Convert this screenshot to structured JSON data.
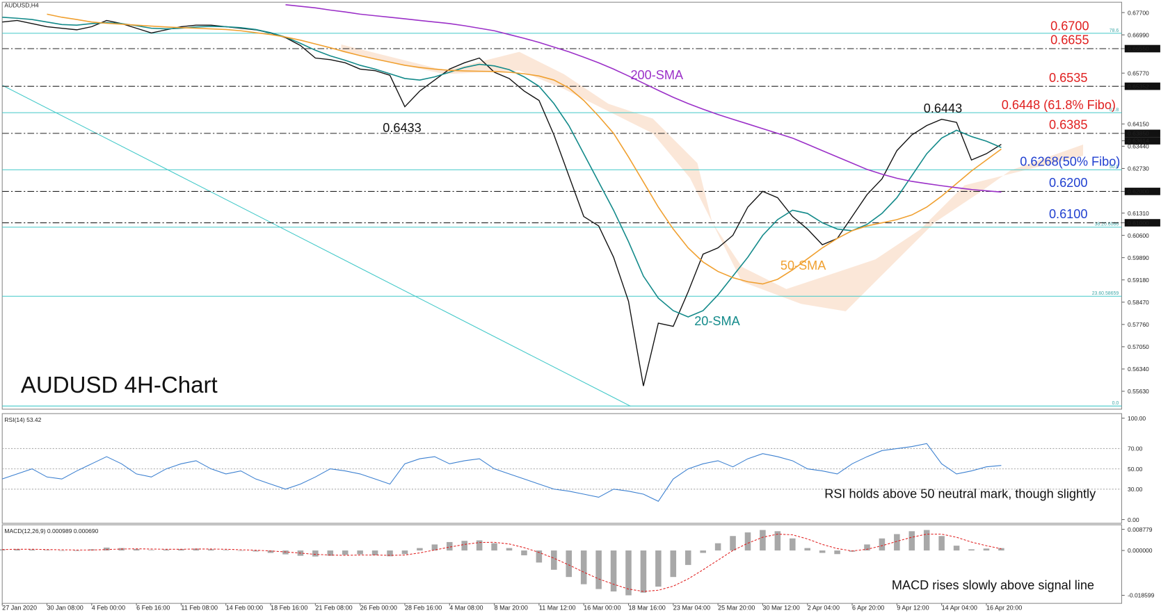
{
  "chart_data": {
    "type": "line",
    "title": "AUDUSD 4H-Chart",
    "symbol_label": "AUDUSD,H4",
    "categories": [
      "27 Jan 2020",
      null,
      null,
      "30 Jan 08:00",
      null,
      null,
      "4 Feb 00:00",
      null,
      null,
      "6 Feb 16:00",
      null,
      null,
      "11 Feb 08:00",
      null,
      null,
      "14 Feb 00:00",
      null,
      null,
      "18 Feb 16:00",
      null,
      null,
      "21 Feb 08:00",
      null,
      null,
      "26 Feb 00:00",
      null,
      null,
      "28 Feb 16:00",
      null,
      null,
      "4 Mar 08:00",
      null,
      null,
      "8 Mar 20:00",
      null,
      null,
      "11 Mar 12:00",
      null,
      null,
      "16 Mar 00:00",
      null,
      null,
      "18 Mar 16:00",
      null,
      null,
      "23 Mar 04:00",
      null,
      null,
      "25 Mar 20:00",
      null,
      null,
      "30 Mar 12:00",
      null,
      null,
      "2 Apr 04:00",
      null,
      null,
      "6 Apr 20:00",
      null,
      null,
      "9 Apr 12:00",
      null,
      null,
      "14 Apr 04:00",
      null,
      null,
      "16 Apr 20:00",
      null
    ],
    "ylim": [
      0.5506,
      0.6803
    ],
    "yticks": [
      {
        "value": 0.677,
        "label": "0.67700"
      },
      {
        "value": 0.6699,
        "label": "0.66990"
      },
      {
        "value": 0.6655,
        "label": "0.66550",
        "boxed": true
      },
      {
        "value": 0.6577,
        "label": "0.65770"
      },
      {
        "value": 0.65352,
        "label": "0.65352",
        "boxed": true
      },
      {
        "value": 0.6415,
        "label": "0.64150"
      },
      {
        "value": 0.6385,
        "label": "0.63850",
        "boxed": true
      },
      {
        "value": 0.63614,
        "label": "0.63614",
        "boxed": true
      },
      {
        "value": 0.6344,
        "label": "0.63440"
      },
      {
        "value": 0.6273,
        "label": "0.62730"
      },
      {
        "value": 0.62,
        "label": "0.62000",
        "boxed": true
      },
      {
        "value": 0.6131,
        "label": "0.61310"
      },
      {
        "value": 0.61,
        "label": "0.61000",
        "boxed": true
      },
      {
        "value": 0.606,
        "label": "0.60600"
      },
      {
        "value": 0.5989,
        "label": "0.59890"
      },
      {
        "value": 0.5918,
        "label": "0.59180"
      },
      {
        "value": 0.5847,
        "label": "0.58470"
      },
      {
        "value": 0.5776,
        "label": "0.57760"
      },
      {
        "value": 0.5705,
        "label": "0.57050"
      },
      {
        "value": 0.5634,
        "label": "0.56340"
      },
      {
        "value": 0.5563,
        "label": "0.55630"
      }
    ],
    "series": [
      {
        "color": "#111111",
        "values": [
          0.674,
          0.6745,
          0.6735,
          0.6725,
          0.672,
          0.6715,
          0.6725,
          0.6745,
          0.6735,
          0.672,
          0.6705,
          0.6715,
          0.6725,
          0.673,
          0.673,
          0.6725,
          0.672,
          0.6715,
          0.6705,
          0.669,
          0.6665,
          0.6625,
          0.662,
          0.661,
          0.659,
          0.6585,
          0.657,
          0.647,
          0.652,
          0.6555,
          0.659,
          0.661,
          0.6625,
          0.658,
          0.656,
          0.652,
          0.649,
          0.638,
          0.625,
          0.612,
          0.609,
          0.599,
          0.585,
          0.558,
          0.578,
          0.577,
          0.588,
          0.6,
          0.602,
          0.606,
          0.615,
          0.62,
          0.618,
          0.612,
          0.608,
          0.603,
          0.605,
          0.612,
          0.619,
          0.624,
          0.633,
          0.638,
          0.641,
          0.643,
          0.642,
          0.63,
          0.632,
          0.635
        ]
      },
      {
        "name": "20-SMA",
        "color": "#138a8a",
        "values": [
          0.6755,
          0.6752,
          0.6748,
          0.674,
          0.6732,
          0.673,
          0.6735,
          0.6738,
          0.6735,
          0.6728,
          0.672,
          0.6718,
          0.672,
          0.6724,
          0.6726,
          0.6725,
          0.6722,
          0.6716,
          0.6706,
          0.6692,
          0.6672,
          0.665,
          0.6632,
          0.6618,
          0.6602,
          0.659,
          0.6575,
          0.656,
          0.6555,
          0.6565,
          0.658,
          0.6595,
          0.6605,
          0.66,
          0.6588,
          0.6565,
          0.6535,
          0.648,
          0.641,
          0.632,
          0.623,
          0.614,
          0.604,
          0.593,
          0.586,
          0.582,
          0.58,
          0.582,
          0.587,
          0.593,
          0.599,
          0.606,
          0.611,
          0.614,
          0.613,
          0.61,
          0.608,
          0.6075,
          0.6095,
          0.613,
          0.618,
          0.625,
          0.632,
          0.637,
          0.6395,
          0.6375,
          0.636,
          0.634
        ]
      },
      {
        "name": "50-SMA",
        "color": "#f0a030",
        "values": [
          null,
          null,
          null,
          0.6765,
          0.6755,
          0.6748,
          0.674,
          0.6736,
          0.6733,
          0.673,
          0.6727,
          0.6724,
          0.6722,
          0.672,
          0.6718,
          0.6716,
          0.6712,
          0.6706,
          0.67,
          0.6692,
          0.6682,
          0.667,
          0.6658,
          0.6645,
          0.6633,
          0.6622,
          0.6612,
          0.6602,
          0.6595,
          0.659,
          0.6586,
          0.6584,
          0.6583,
          0.6582,
          0.658,
          0.6575,
          0.6568,
          0.6555,
          0.653,
          0.649,
          0.644,
          0.6385,
          0.631,
          0.623,
          0.615,
          0.608,
          0.602,
          0.5975,
          0.5945,
          0.5925,
          0.5912,
          0.5905,
          0.592,
          0.595,
          0.5985,
          0.602,
          0.605,
          0.6075,
          0.609,
          0.61,
          0.611,
          0.6125,
          0.615,
          0.6185,
          0.6225,
          0.6265,
          0.63,
          0.6335
        ]
      },
      {
        "name": "200-SMA",
        "color": "#9b30c8",
        "values": [
          null,
          null,
          null,
          null,
          null,
          null,
          null,
          null,
          null,
          null,
          null,
          null,
          null,
          null,
          null,
          null,
          null,
          null,
          null,
          0.6795,
          0.679,
          0.6785,
          0.6778,
          0.6772,
          0.6765,
          0.676,
          0.6755,
          0.675,
          0.6745,
          0.674,
          0.6735,
          0.6728,
          0.672,
          0.6712,
          0.67,
          0.6688,
          0.6675,
          0.666,
          0.6645,
          0.6628,
          0.661,
          0.659,
          0.6568,
          0.6545,
          0.6522,
          0.65,
          0.648,
          0.6462,
          0.6445,
          0.643,
          0.6415,
          0.64,
          0.6385,
          0.637,
          0.635,
          0.633,
          0.631,
          0.629,
          0.627,
          0.6255,
          0.6242,
          0.6232,
          0.6225,
          0.6218,
          0.6212,
          0.6206,
          0.6202,
          0.6198
        ]
      }
    ],
    "levels": [
      {
        "value": 0.67,
        "label": "0.6700",
        "color": "#e02020",
        "line": "none"
      },
      {
        "value": 0.6655,
        "label": "0.6655",
        "color": "#e02020",
        "line": "dashdot"
      },
      {
        "value": 0.6535,
        "label": "0.6535",
        "color": "#e02020",
        "line": "dashdot"
      },
      {
        "value": 0.6448,
        "label": "0.6448 (61.8% Fibo)",
        "color": "#e02020",
        "line": "none"
      },
      {
        "value": 0.6385,
        "label": "0.6385",
        "color": "#e02020",
        "line": "dashdot"
      },
      {
        "value": 0.6268,
        "label": "0.6268(50% Fibo)",
        "color": "#2040d0",
        "line": "none"
      },
      {
        "value": 0.62,
        "label": "0.6200",
        "color": "#2040d0",
        "line": "dashdot"
      },
      {
        "value": 0.61,
        "label": "0.6100",
        "color": "#2040d0",
        "line": "dashdot"
      }
    ],
    "fibo": {
      "color": "#40c8c8",
      "values": [
        0.6704,
        0.6451,
        0.6269,
        0.6086,
        0.58659,
        0.5516
      ],
      "level_labels": [
        "78.6",
        "61.8",
        "50.0",
        "38.20.6086",
        "23.60.58659",
        "0.0"
      ]
    },
    "annotations": [
      {
        "text": "0.6443",
        "value": 0.6443,
        "color": "#111111"
      },
      {
        "text": "0.6433",
        "value": 0.6433,
        "color": "#111111"
      },
      {
        "text": "200-SMA",
        "color": "#9b30c8"
      },
      {
        "text": "50-SMA",
        "color": "#f0a030"
      },
      {
        "text": "20-SMA",
        "color": "#138a8a"
      }
    ],
    "rsi": {
      "label": "RSI(14) 53.42",
      "note": "RSI holds above 50 neutral mark, though slightly",
      "color": "#3a7fd0",
      "ylim": [
        -3.7,
        104.5
      ],
      "yticks": [
        {
          "value": 100,
          "label": "100.00"
        },
        {
          "value": 70,
          "label": "70.00"
        },
        {
          "value": 50,
          "label": "50.00"
        },
        {
          "value": 30,
          "label": "30.00"
        },
        {
          "value": 0,
          "label": "0.00"
        }
      ],
      "values": [
        40,
        45,
        50,
        42,
        40,
        48,
        55,
        62,
        55,
        45,
        42,
        50,
        55,
        58,
        50,
        45,
        48,
        40,
        35,
        30,
        35,
        42,
        50,
        48,
        45,
        40,
        35,
        55,
        60,
        62,
        55,
        58,
        60,
        50,
        45,
        40,
        35,
        30,
        28,
        25,
        22,
        30,
        28,
        25,
        18,
        40,
        50,
        55,
        58,
        52,
        60,
        65,
        62,
        58,
        50,
        48,
        45,
        55,
        62,
        68,
        70,
        72,
        75,
        55,
        45,
        48,
        52,
        53.42
      ]
    },
    "macd": {
      "label": "MACD(12,26,9) 0.000989 0.000690",
      "note": "MACD rises slowly above signal line",
      "hist_color": "#a8a8a8",
      "signal_color": "#e02020",
      "ylim": [
        -0.02194,
        0.01066
      ],
      "yticks": [
        0.008779,
        {
          "value": 0,
          "label": "0.000000"
        },
        -0.018599
      ],
      "histogram": [
        0.0005,
        0.0006,
        0.0004,
        0.0002,
        0.0,
        -0.0002,
        0.0005,
        0.0012,
        0.001,
        0.0006,
        0.0002,
        0.0004,
        0.0006,
        0.0008,
        0.0005,
        0.0002,
        0.0,
        -0.0004,
        -0.001,
        -0.0016,
        -0.0022,
        -0.0025,
        -0.0022,
        -0.0018,
        -0.0016,
        -0.002,
        -0.0024,
        -0.0015,
        0.001,
        0.0025,
        0.0035,
        0.004,
        0.0042,
        0.003,
        0.001,
        -0.002,
        -0.005,
        -0.008,
        -0.011,
        -0.014,
        -0.016,
        -0.017,
        -0.0186,
        -0.0175,
        -0.015,
        -0.011,
        -0.006,
        -0.001,
        0.003,
        0.006,
        0.0075,
        0.0085,
        0.008,
        0.005,
        0.001,
        -0.001,
        -0.0015,
        -0.0005,
        0.0025,
        0.005,
        0.0068,
        0.008,
        0.0085,
        0.006,
        0.002,
        0.0005,
        0.0008,
        0.000989
      ],
      "signal": [
        0.0004,
        0.0005,
        0.0005,
        0.0004,
        0.0003,
        0.0002,
        0.0002,
        0.0004,
        0.0006,
        0.0007,
        0.0006,
        0.0005,
        0.0005,
        0.0006,
        0.0006,
        0.0005,
        0.0003,
        0.0001,
        -0.0002,
        -0.0006,
        -0.0011,
        -0.0016,
        -0.0019,
        -0.002,
        -0.0019,
        -0.0019,
        -0.002,
        -0.0019,
        -0.001,
        0.0002,
        0.0014,
        0.0025,
        0.0033,
        0.0034,
        0.0027,
        0.0012,
        -0.0008,
        -0.0032,
        -0.006,
        -0.009,
        -0.0118,
        -0.014,
        -0.016,
        -0.017,
        -0.0165,
        -0.0148,
        -0.0118,
        -0.008,
        -0.004,
        0.0,
        0.003,
        0.0055,
        0.0068,
        0.0065,
        0.0048,
        0.0025,
        0.0008,
        -0.0002,
        0.0005,
        0.002,
        0.0038,
        0.0055,
        0.0068,
        0.0068,
        0.0055,
        0.0035,
        0.002,
        0.00069
      ]
    }
  }
}
